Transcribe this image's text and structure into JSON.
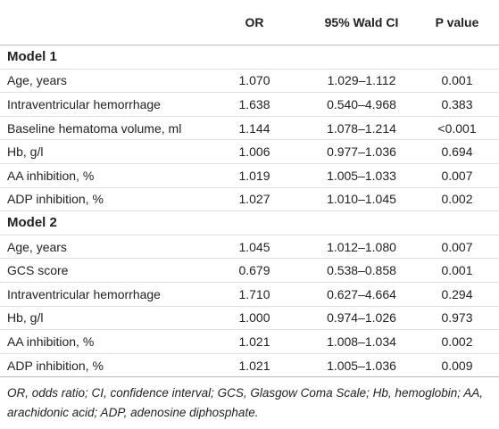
{
  "table": {
    "header": [
      "",
      "OR",
      "95% Wald CI",
      "P value"
    ],
    "sections": [
      {
        "title": "Model 1",
        "rows": [
          [
            "Age, years",
            "1.070",
            "1.029–1.112",
            "0.001"
          ],
          [
            "Intraventricular hemorrhage",
            "1.638",
            "0.540–4.968",
            "0.383"
          ],
          [
            "Baseline hematoma volume, ml",
            "1.144",
            "1.078–1.214",
            "<0.001"
          ],
          [
            "Hb, g/l",
            "1.006",
            "0.977–1.036",
            "0.694"
          ],
          [
            "AA inhibition, %",
            "1.019",
            "1.005–1.033",
            "0.007"
          ],
          [
            "ADP inhibition, %",
            "1.027",
            "1.010–1.045",
            "0.002"
          ]
        ]
      },
      {
        "title": "Model 2",
        "rows": [
          [
            "Age, years",
            "1.045",
            "1.012–1.080",
            "0.007"
          ],
          [
            "GCS score",
            "0.679",
            "0.538–0.858",
            "0.001"
          ],
          [
            "Intraventricular hemorrhage",
            "1.710",
            "0.627–4.664",
            "0.294"
          ],
          [
            "Hb, g/l",
            "1.000",
            "0.974–1.026",
            "0.973"
          ],
          [
            "AA inhibition, %",
            "1.021",
            "1.008–1.034",
            "0.002"
          ],
          [
            "ADP inhibition, %",
            "1.021",
            "1.005–1.036",
            "0.009"
          ]
        ]
      }
    ],
    "footnote": "OR, odds ratio; CI, confidence interval; GCS, Glasgow Coma Scale; Hb, hemoglobin; AA, arachidonic acid; ADP, adenosine diphosphate."
  }
}
